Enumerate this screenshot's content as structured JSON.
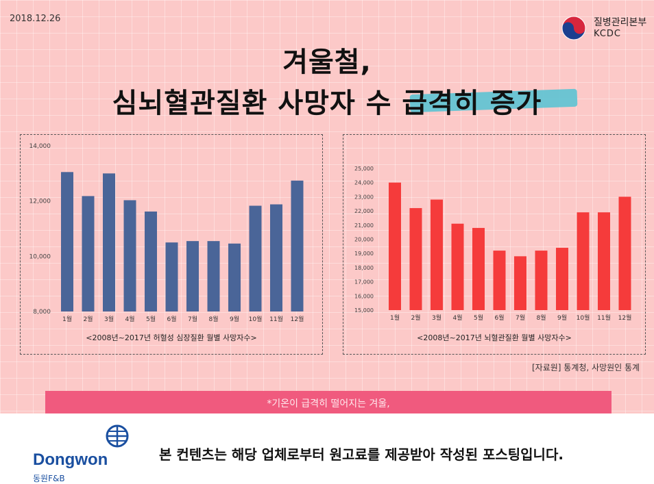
{
  "header": {
    "date": "2018.12.26",
    "org_ko": "질병관리본부",
    "org_en": "KCDC"
  },
  "title": {
    "line1": "겨울철,",
    "line2": "심뇌혈관질환 사망자 수 급격히 증가"
  },
  "colors": {
    "background": "#fcc9c8",
    "bar_left": "#4a6598",
    "bar_right": "#f53b3b",
    "highlight": "#5cc3d3",
    "note": "#f05a7e",
    "brand": "#1a4fa0"
  },
  "source": "[자료원] 통계청, 사망원인 통계",
  "note": "*기온이 급격히 떨어지는 겨울,",
  "footer": {
    "brand_en": "Dongwon",
    "brand_ko": "동원F&B",
    "disclaimer": "본 컨텐츠는 해당 업체로부터 원고료를 제공받아 작성된 포스팅입니다."
  },
  "chart_data": [
    {
      "type": "bar",
      "caption": "<2008년~2017년 허혈성 심장질환 월별 사망자수>",
      "categories": [
        "1월",
        "2월",
        "3월",
        "4월",
        "5월",
        "6월",
        "7월",
        "8월",
        "9월",
        "10월",
        "11월",
        "12월"
      ],
      "values": [
        13050,
        12180,
        13000,
        12030,
        11620,
        10500,
        10550,
        10550,
        10460,
        11830,
        11880,
        12740
      ],
      "ylim": [
        8000,
        14000
      ],
      "yticks": [
        8000,
        10000,
        12000,
        14000
      ],
      "ytick_labels": [
        "8,000",
        "10,000",
        "12,000",
        "14,000"
      ],
      "grid": false
    },
    {
      "type": "bar",
      "caption": "<2008년~2017년 뇌혈관질환 월별 사망자수>",
      "categories": [
        "1월",
        "2월",
        "3월",
        "4월",
        "5월",
        "6월",
        "7월",
        "8월",
        "9월",
        "10월",
        "11월",
        "12월"
      ],
      "values": [
        24000,
        22200,
        22800,
        21100,
        20800,
        19200,
        18800,
        19200,
        19400,
        21900,
        21900,
        23000
      ],
      "ylim": [
        15000,
        25000
      ],
      "yticks": [
        15000,
        16000,
        17000,
        18000,
        19000,
        20000,
        21000,
        22000,
        23000,
        24000,
        25000
      ],
      "ytick_labels": [
        "15,000",
        "16,000",
        "17,000",
        "18,000",
        "19,000",
        "20,000",
        "21,000",
        "22,000",
        "23,000",
        "24,000",
        "25,000"
      ],
      "grid": false
    }
  ]
}
